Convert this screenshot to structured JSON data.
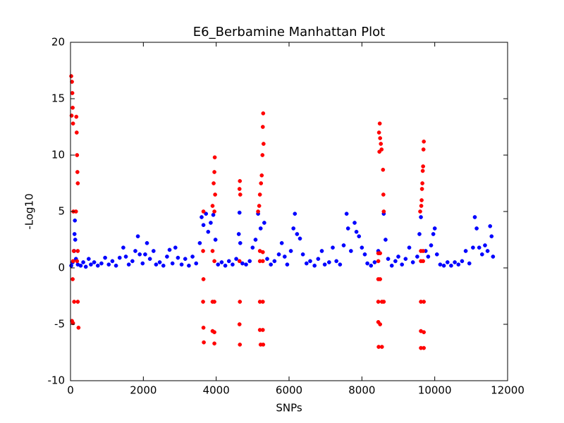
{
  "chart_data": {
    "type": "scatter",
    "title": "E6_Berbamine Manhattan Plot",
    "x_label": "SNPs",
    "y_label": "-Log10",
    "xlim": [
      0,
      12000
    ],
    "xticks": [
      0,
      2000,
      4000,
      6000,
      8000,
      10000,
      12000
    ],
    "ylim": [
      -10,
      20
    ],
    "yticks": [
      -10,
      -5,
      0,
      5,
      10,
      15,
      20
    ],
    "series": [
      {
        "color": "#0000ff",
        "x": [
          20,
          60,
          100,
          110,
          120,
          130,
          150,
          200,
          280,
          350,
          420,
          500,
          560,
          650,
          750,
          850,
          950,
          1050,
          1150,
          1250,
          1350,
          1450,
          1520,
          1600,
          1700,
          1780,
          1850,
          1900,
          1980,
          2050,
          2100,
          2180,
          2280,
          2350,
          2450,
          2550,
          2650,
          2720,
          2800,
          2880,
          2950,
          3050,
          3150,
          3250,
          3350,
          3450,
          3550,
          3600,
          3650,
          3720,
          3780,
          3850,
          3920,
          3980,
          4050,
          4150,
          4250,
          4350,
          4450,
          4550,
          4620,
          4640,
          4660,
          4720,
          4820,
          4920,
          5000,
          5080,
          5150,
          5220,
          5320,
          5400,
          5500,
          5600,
          5720,
          5800,
          5880,
          5950,
          6050,
          6120,
          6160,
          6220,
          6300,
          6380,
          6480,
          6580,
          6700,
          6800,
          6900,
          6980,
          7100,
          7200,
          7300,
          7400,
          7500,
          7580,
          7620,
          7700,
          7800,
          7850,
          7920,
          8000,
          8080,
          8150,
          8250,
          8350,
          8450,
          8600,
          8650,
          8720,
          8820,
          8920,
          9000,
          9100,
          9200,
          9300,
          9400,
          9520,
          9580,
          9620,
          9750,
          9820,
          9900,
          9960,
          10000,
          10060,
          10150,
          10250,
          10350,
          10450,
          10550,
          10650,
          10750,
          10850,
          10950,
          11050,
          11100,
          11150,
          11220,
          11300,
          11380,
          11450,
          11520,
          11560,
          11600
        ],
        "values": [
          0.2,
          0.5,
          1.5,
          3,
          4.2,
          2.5,
          0.8,
          0.3,
          0.2,
          0.5,
          0.1,
          0.8,
          0.3,
          0.5,
          0.2,
          0.4,
          0.9,
          0.3,
          0.6,
          0.2,
          0.9,
          1.8,
          1.0,
          0.3,
          0.6,
          1.5,
          2.8,
          1.2,
          0.4,
          1.2,
          2.2,
          0.8,
          1.5,
          0.3,
          0.5,
          0.2,
          1.0,
          1.6,
          0.4,
          1.8,
          0.9,
          0.3,
          0.8,
          0.2,
          1.0,
          0.4,
          2.2,
          4.5,
          3.8,
          4.8,
          3.2,
          4.0,
          4.7,
          2.5,
          0.3,
          0.5,
          0.2,
          0.6,
          0.3,
          0.8,
          3.0,
          4.9,
          2.2,
          0.4,
          0.3,
          0.6,
          1.8,
          2.5,
          4.8,
          3.5,
          4.0,
          0.8,
          0.3,
          0.6,
          1.2,
          2.2,
          1.0,
          0.3,
          1.5,
          3.5,
          4.8,
          3.0,
          2.6,
          1.2,
          0.4,
          0.6,
          0.2,
          0.8,
          1.5,
          0.3,
          0.5,
          1.8,
          0.6,
          0.3,
          2.0,
          4.8,
          3.5,
          1.5,
          4.0,
          3.2,
          2.8,
          1.8,
          1.2,
          0.4,
          0.2,
          0.5,
          1.5,
          4.8,
          2.5,
          0.8,
          0.2,
          0.6,
          1.0,
          0.3,
          0.8,
          1.8,
          0.5,
          1.0,
          3.0,
          4.5,
          1.5,
          1.0,
          2.0,
          3.0,
          3.5,
          1.2,
          0.3,
          0.2,
          0.5,
          0.2,
          0.5,
          0.3,
          0.6,
          1.5,
          0.4,
          1.8,
          4.5,
          3.5,
          1.8,
          1.2,
          2.0,
          1.5,
          3.7,
          2.8,
          1.0
        ]
      },
      {
        "color": "#ff0000",
        "x": [
          20,
          40,
          50,
          60,
          30,
          70,
          80,
          90,
          70,
          60,
          100,
          40,
          70,
          160,
          170,
          180,
          190,
          200,
          150,
          200,
          180,
          200,
          220,
          3650,
          3640,
          3650,
          3640,
          3650,
          3660,
          3960,
          3950,
          3930,
          3970,
          3900,
          3950,
          3900,
          3950,
          3900,
          3950,
          3900,
          3950,
          3950,
          4650,
          4640,
          4660,
          4640,
          4650,
          4640,
          4650,
          5290,
          5280,
          5300,
          5270,
          5250,
          5230,
          5200,
          5180,
          5150,
          5200,
          5280,
          5200,
          5280,
          5200,
          5280,
          5200,
          5280,
          5220,
          5290,
          8490,
          8470,
          8500,
          8520,
          8540,
          8480,
          8450,
          8500,
          8450,
          8500,
          8450,
          8450,
          8550,
          8450,
          8500,
          8460,
          8550,
          8580,
          8590,
          8600,
          8600,
          9700,
          9690,
          9680,
          9670,
          9660,
          9650,
          9640,
          9630,
          9600,
          9620,
          9680,
          9620,
          9680,
          9620,
          9700,
          9620,
          9700,
          9620,
          9700
        ],
        "values": [
          17,
          16.5,
          15.5,
          14.2,
          13.5,
          12.8,
          5,
          1.5,
          0.6,
          -1,
          -3,
          -4.7,
          -4.9,
          13.4,
          12,
          10,
          8.5,
          7.5,
          5,
          1.5,
          0.6,
          -3,
          -5.3,
          5,
          1.5,
          -1,
          -3,
          -5.3,
          -6.6,
          9.8,
          8.5,
          7.5,
          6.5,
          5.5,
          5,
          1.5,
          0.6,
          -3,
          -3,
          -5.6,
          -5.7,
          -6.7,
          7.7,
          7,
          6.5,
          0.6,
          -3,
          -5,
          -6.8,
          13.7,
          12.5,
          11,
          10,
          8.2,
          7.5,
          6.5,
          5.5,
          5,
          1.5,
          1.4,
          0.6,
          0.6,
          -3,
          -3,
          -5.5,
          -5.5,
          -6.8,
          -6.8,
          12.8,
          12,
          11.5,
          11,
          10.5,
          10.3,
          1.3,
          1.3,
          0.6,
          -1,
          -1,
          -3,
          -3,
          -4.8,
          -5,
          -7,
          -7,
          8.7,
          6.5,
          5,
          -3,
          11.2,
          10.5,
          9,
          8.6,
          7.5,
          7,
          6,
          5.5,
          5,
          1.5,
          1.5,
          0.6,
          0.6,
          -3,
          -3,
          -5.6,
          -5.7,
          -7.1,
          -7.1
        ]
      }
    ]
  }
}
